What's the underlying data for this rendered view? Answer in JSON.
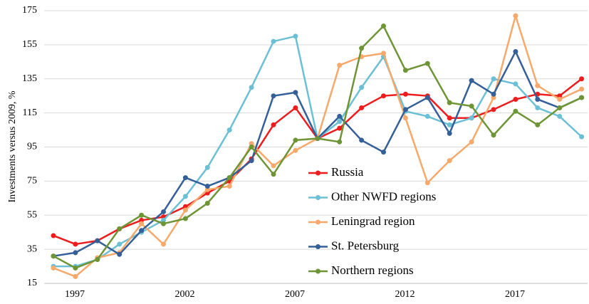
{
  "chart_data": {
    "type": "line",
    "y_label": "Investments versus 2009, %",
    "categories": [
      "1997",
      null,
      null,
      null,
      null,
      "2002",
      null,
      null,
      null,
      null,
      "2007",
      null,
      null,
      null,
      null,
      "2012",
      null,
      null,
      null,
      null,
      "2017",
      null,
      null,
      null,
      null
    ],
    "ylim": [
      15,
      175
    ],
    "yticks": [
      15,
      35,
      55,
      75,
      95,
      115,
      135,
      155,
      175
    ],
    "grid": true,
    "series": [
      {
        "name": "Russia",
        "color": "#ee1c1c",
        "values": [
          43,
          38,
          40,
          47,
          52,
          54,
          60,
          68,
          75,
          88,
          108,
          118,
          100,
          106,
          118,
          125,
          126,
          125,
          112,
          112,
          117,
          123,
          126,
          125,
          135
        ]
      },
      {
        "name": "Other NWFD regions",
        "color": "#6cc0d6",
        "values": [
          25,
          25,
          29,
          38,
          45,
          52,
          66,
          83,
          105,
          130,
          157,
          160,
          100,
          110,
          130,
          148,
          116,
          113,
          108,
          112,
          135,
          132,
          118,
          113,
          101
        ]
      },
      {
        "name": "Leningrad region",
        "color": "#f6a96b",
        "values": [
          24,
          19,
          30,
          33,
          50,
          38,
          58,
          70,
          72,
          97,
          84,
          93,
          100,
          143,
          148,
          150,
          112,
          74,
          87,
          98,
          124,
          172,
          131,
          123,
          129
        ]
      },
      {
        "name": "St. Petersburg",
        "color": "#355f98",
        "values": [
          31,
          33,
          40,
          32,
          46,
          57,
          77,
          72,
          77,
          87,
          125,
          127,
          100,
          113,
          99,
          92,
          117,
          124,
          103,
          134,
          126,
          151,
          123,
          118,
          124
        ]
      },
      {
        "name": "Northern regions",
        "color": "#6e9535",
        "values": [
          31,
          24,
          29,
          47,
          55,
          50,
          53,
          62,
          77,
          95,
          79,
          99,
          100,
          98,
          153,
          166,
          140,
          144,
          121,
          119,
          102,
          116,
          108,
          118,
          124
        ]
      }
    ]
  }
}
